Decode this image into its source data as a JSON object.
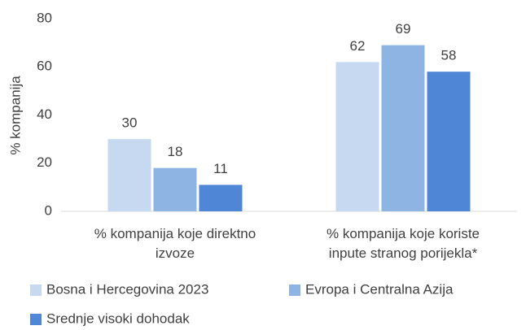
{
  "chart_data": {
    "type": "bar",
    "y_label": "% kompanija",
    "categories": [
      "% kompanija koje direktno izvoze",
      "% kompanija koje koriste inpute stranog porijekla*"
    ],
    "series": [
      {
        "name": "Bosna i Hercegovina 2023",
        "color": "#c6d9f0",
        "values": [
          30,
          62
        ]
      },
      {
        "name": "Evropa i Centralna Azija",
        "color": "#8eb4e3",
        "values": [
          18,
          69
        ]
      },
      {
        "name": "Srednje visoki dohodak",
        "color": "#4f87d6",
        "values": [
          11,
          58
        ]
      }
    ],
    "ylim": [
      0,
      80
    ],
    "yticks": [
      0,
      20,
      40,
      60,
      80
    ],
    "grid": false
  }
}
